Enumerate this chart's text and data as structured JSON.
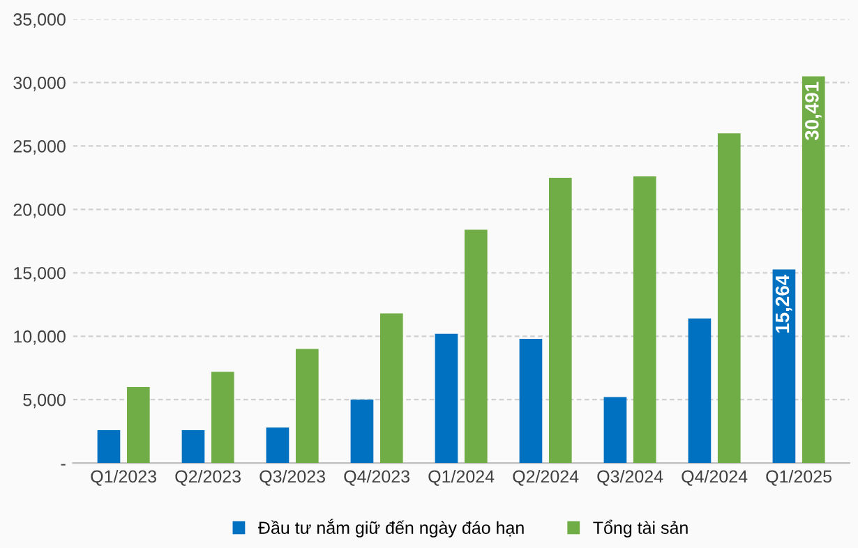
{
  "chart_data": {
    "type": "bar",
    "categories": [
      "Q1/2023",
      "Q2/2023",
      "Q3/2023",
      "Q4/2023",
      "Q1/2024",
      "Q2/2024",
      "Q3/2024",
      "Q4/2024",
      "Q1/2025"
    ],
    "series": [
      {
        "name": "Đầu tư nắm giữ đến ngày đáo hạn",
        "color": "#0070c0",
        "values": [
          2600,
          2600,
          2800,
          5000,
          10200,
          9800,
          5200,
          11400,
          15264
        ],
        "value_labels": [
          null,
          null,
          null,
          null,
          null,
          null,
          null,
          null,
          "15,264"
        ]
      },
      {
        "name": "Tổng tài sản",
        "color": "#70ad47",
        "values": [
          6000,
          7200,
          9000,
          11800,
          18400,
          22500,
          22600,
          26000,
          30491
        ],
        "value_labels": [
          null,
          null,
          null,
          null,
          null,
          null,
          null,
          null,
          "30,491"
        ]
      }
    ],
    "ylim": [
      0,
      35000
    ],
    "yticks": [
      {
        "value": 0,
        "label": "-"
      },
      {
        "value": 5000,
        "label": "5,000"
      },
      {
        "value": 10000,
        "label": "10,000"
      },
      {
        "value": 15000,
        "label": "15,000"
      },
      {
        "value": 20000,
        "label": "20,000"
      },
      {
        "value": 25000,
        "label": "25,000"
      },
      {
        "value": 30000,
        "label": "30,000"
      },
      {
        "value": 35000,
        "label": "35,000"
      }
    ],
    "grid": "y",
    "legend": "bottom"
  }
}
